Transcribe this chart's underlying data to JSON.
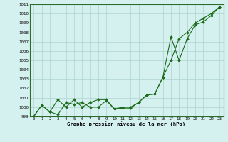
{
  "x": [
    0,
    1,
    2,
    3,
    4,
    5,
    6,
    7,
    8,
    9,
    10,
    11,
    12,
    13,
    14,
    15,
    16,
    17,
    18,
    19,
    20,
    21,
    22,
    23
  ],
  "line1": [
    999.0,
    1000.2,
    999.5,
    999.2,
    1000.5,
    1000.3,
    1000.5,
    1000.0,
    1000.0,
    1000.7,
    999.8,
    1000.0,
    1000.0,
    1000.5,
    1001.3,
    1001.4,
    1003.2,
    1005.0,
    1007.3,
    1008.0,
    1009.0,
    1009.5,
    1010.0,
    1010.7
  ],
  "line2": [
    999.0,
    1000.2,
    999.5,
    1000.8,
    1000.0,
    1000.8,
    1000.0,
    1000.5,
    1000.8,
    1000.8,
    999.8,
    999.9,
    999.9,
    1000.5,
    1001.3,
    1001.4,
    1003.2,
    1007.5,
    1005.0,
    1007.3,
    1008.8,
    1009.1,
    1009.8,
    1010.7
  ],
  "ylim": [
    999,
    1011
  ],
  "yticks": [
    999,
    1000,
    1001,
    1002,
    1003,
    1004,
    1005,
    1006,
    1007,
    1008,
    1009,
    1010,
    1011
  ],
  "xticks": [
    0,
    1,
    2,
    3,
    4,
    5,
    6,
    7,
    8,
    9,
    10,
    11,
    12,
    13,
    14,
    15,
    16,
    17,
    18,
    19,
    20,
    21,
    22,
    23
  ],
  "line_color": "#1a6b1a",
  "bg_color": "#d4f0ef",
  "grid_color": "#b0d4d0",
  "xlabel": "Graphe pression niveau de la mer (hPa)",
  "marker": "D",
  "markersize": 1.8,
  "linewidth": 0.8,
  "tick_fontsize": 4.2,
  "xlabel_fontsize": 5.2
}
